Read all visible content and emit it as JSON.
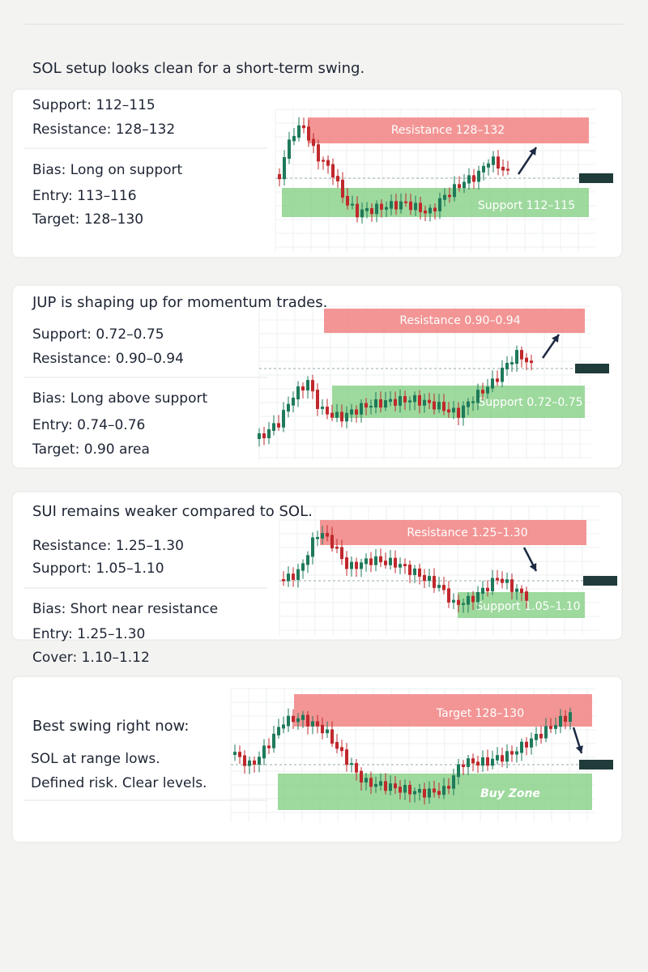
{
  "sections": [
    {
      "title": "SOL setup looks clean for a short-term swing.",
      "lines": [
        "Support: 112–115",
        "Resistance: 128–132",
        "Bias: Long on support",
        "Entry: 113–116",
        "Target: 128–130"
      ],
      "zones": [
        "Resistance 128–132",
        "Support 112–115"
      ]
    },
    {
      "title": "JUP is shaping up for momentum trades.",
      "lines": [
        "Support: 0.72–0.75",
        "Resistance: 0.90–0.94",
        "Bias: Long above support",
        "Entry: 0.74–0.76",
        "Target: 0.90 area"
      ],
      "zones": [
        "Resistance 0.90–0.94",
        "Support 0.72–0.75"
      ]
    },
    {
      "title": "SUI remains weaker compared to SOL.",
      "lines": [
        "Resistance: 1.25–1.30",
        "Support: 1.05–1.10",
        "Bias: Short near resistance",
        "Entry: 1.25–1.30",
        "Cover: 1.10–1.12"
      ],
      "zones": [
        "Resistance 1.25–1.30",
        "Support 1.05–1.10"
      ]
    },
    {
      "title": "Best swing right now:",
      "lines": [
        "SOL at range lows.",
        "Defined risk. Clear levels."
      ],
      "zones": [
        "Target 128–130",
        "Buy Zone"
      ]
    }
  ]
}
